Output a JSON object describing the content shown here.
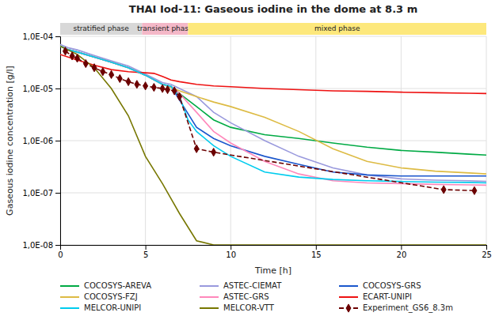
{
  "chart_data": {
    "type": "line",
    "title": "THAI Iod-11: Gaseous iodine in the dome at 8.3 m",
    "xlabel": "Time [h]",
    "ylabel": "Gaseous iodine concentration [g/l]",
    "log": "y",
    "grid": true,
    "legend": "bottom",
    "xlim": [
      0,
      25
    ],
    "xticks": [
      0,
      5,
      10,
      15,
      20,
      25
    ],
    "ylim": [
      1e-08,
      0.0001
    ],
    "yticks": [
      {
        "value": 1e-08,
        "label": "1,0E-08"
      },
      {
        "value": 1e-07,
        "label": "1,0E-07"
      },
      {
        "value": 1e-06,
        "label": "1,0E-06"
      },
      {
        "value": 1e-05,
        "label": "1,0E-05"
      },
      {
        "value": 0.0001,
        "label": "1,0E-04"
      }
    ],
    "phases": [
      {
        "label": "stratified phase",
        "xstart": 0,
        "xend": 4.8,
        "color": "#d8d8d8"
      },
      {
        "label": "transient phase",
        "xstart": 4.8,
        "xend": 7.5,
        "color": "#f4b8c8"
      },
      {
        "label": "mixed phase",
        "xstart": 7.5,
        "xend": 25,
        "color": "#fde87c"
      }
    ],
    "series": [
      {
        "name": "COCOSYS-AREVA",
        "color": "#00aa44",
        "x": [
          0,
          0.5,
          1,
          2,
          3,
          4,
          5,
          6,
          6.5,
          7,
          8,
          9,
          10,
          12,
          14,
          16,
          18,
          20,
          22,
          24,
          25
        ],
        "values": [
          6.5e-05,
          5.5e-05,
          5e-05,
          4e-05,
          3.2e-05,
          2.5e-05,
          1.8e-05,
          1.2e-05,
          1.1e-05,
          8e-06,
          4.5e-06,
          2.5e-06,
          1.8e-06,
          1.3e-06,
          1.1e-06,
          9e-07,
          7.5e-07,
          6.5e-07,
          6e-07,
          5.5e-07,
          5.3e-07
        ]
      },
      {
        "name": "ASTEC-CIEMAT",
        "color": "#9999dd",
        "x": [
          0,
          0.5,
          1,
          2,
          3,
          4,
          5,
          6,
          6.5,
          7,
          8,
          9,
          10,
          12,
          14,
          16,
          18,
          20,
          22,
          24,
          25
        ],
        "values": [
          7e-05,
          6e-05,
          5.5e-05,
          4.3e-05,
          3.4e-05,
          2.7e-05,
          1.9e-05,
          1.3e-05,
          1.2e-05,
          1e-05,
          7e-06,
          3.5e-06,
          2.2e-06,
          1e-06,
          5e-07,
          3e-07,
          2.2e-07,
          1.85e-07,
          1.75e-07,
          1.7e-07,
          1.65e-07
        ]
      },
      {
        "name": "COCOSYS-GRS",
        "color": "#1a56cc",
        "x": [
          0,
          0.5,
          1,
          2,
          3,
          4,
          5,
          6,
          6.5,
          7,
          8,
          9,
          10,
          12,
          14,
          16,
          18,
          20,
          22,
          24,
          25
        ],
        "values": [
          6.5e-05,
          5.5e-05,
          5e-05,
          4e-05,
          3.2e-05,
          2.5e-05,
          1.8e-05,
          1.2e-05,
          1.1e-05,
          6e-06,
          1.8e-06,
          1.1e-06,
          8e-07,
          5e-07,
          3.5e-07,
          2.5e-07,
          2.2e-07,
          2.1e-07,
          2.1e-07,
          2.1e-07,
          2.1e-07
        ]
      },
      {
        "name": "COCOSYS-FZJ",
        "color": "#ddbb44",
        "x": [
          0,
          0.5,
          1,
          2,
          3,
          4,
          5,
          6,
          7,
          8,
          9,
          10,
          12,
          14,
          16,
          18,
          20,
          22,
          24,
          25
        ],
        "values": [
          6.5e-05,
          5.5e-05,
          5e-05,
          4e-05,
          3.2e-05,
          2.5e-05,
          1.8e-05,
          1.2e-05,
          9e-06,
          7e-06,
          5.5e-06,
          4.5e-06,
          2.8e-06,
          1.5e-06,
          7e-07,
          4e-07,
          3e-07,
          2.6e-07,
          2.4e-07,
          2.3e-07
        ]
      },
      {
        "name": "ASTEC-GRS",
        "color": "#ff88bb",
        "x": [
          0,
          0.5,
          1,
          2,
          3,
          4,
          5,
          6,
          6.5,
          7,
          8,
          9,
          10,
          12,
          14,
          16,
          18,
          20,
          22,
          24,
          25
        ],
        "values": [
          6.5e-05,
          5.5e-05,
          5e-05,
          4e-05,
          3.2e-05,
          2.5e-05,
          1.8e-05,
          1.2e-05,
          1.1e-05,
          8e-06,
          3.5e-06,
          1.5e-06,
          9e-07,
          4e-07,
          2.3e-07,
          1.7e-07,
          1.55e-07,
          1.5e-07,
          1.45e-07,
          1.42e-07,
          1.4e-07
        ]
      },
      {
        "name": "ECART-UNIPI",
        "color": "#ee1111",
        "x": [
          0,
          1,
          2,
          3,
          4,
          4.5,
          5,
          5.5,
          6,
          6.2,
          6.5,
          7,
          8,
          9,
          10,
          12,
          14,
          16,
          18,
          20,
          22,
          24,
          25
        ],
        "values": [
          4.5e-05,
          3.5e-05,
          2.8e-05,
          2.3e-05,
          2.1e-05,
          2.05e-05,
          2e-05,
          1.95e-05,
          1.7e-05,
          1.6e-05,
          1.45e-05,
          1.35e-05,
          1.2e-05,
          1.12e-05,
          1.08e-05,
          1e-05,
          9.5e-06,
          9e-06,
          8.8e-06,
          8.5e-06,
          8.3e-06,
          8.1e-06,
          8e-06
        ]
      },
      {
        "name": "MELCOR-UNIPI",
        "color": "#00ccee",
        "x": [
          0,
          0.5,
          1,
          2,
          3,
          4,
          5,
          6,
          6.5,
          7,
          7.5,
          8,
          9,
          10,
          12,
          14,
          16,
          18,
          20,
          22,
          24,
          25
        ],
        "values": [
          6.5e-05,
          5.5e-05,
          5e-05,
          4e-05,
          3.2e-05,
          2.5e-05,
          1.8e-05,
          1.2e-05,
          1.1e-05,
          7e-06,
          2.5e-06,
          1.5e-06,
          8e-07,
          5e-07,
          2.5e-07,
          2e-07,
          1.8e-07,
          1.7e-07,
          1.65e-07,
          1.6e-07,
          1.58e-07,
          1.55e-07
        ]
      },
      {
        "name": "MELCOR-VTT",
        "color": "#777700",
        "x": [
          0,
          1,
          2,
          3,
          4,
          5,
          6,
          7,
          8,
          9,
          9.5,
          25
        ],
        "values": [
          6.5e-05,
          4.5e-05,
          2.5e-05,
          1e-05,
          3e-06,
          5e-07,
          1.5e-07,
          4e-08,
          1.2e-08,
          1e-08,
          1e-08,
          1e-08
        ]
      },
      {
        "name": "Experiment_GS6_8.3m",
        "color": "#6b0000",
        "marker": "diamond",
        "line_style": "dashed",
        "x": [
          0.3,
          0.7,
          1.0,
          1.5,
          2.0,
          2.5,
          3.0,
          3.5,
          4.0,
          4.5,
          5.0,
          5.5,
          6.0,
          6.3,
          6.7,
          7.0,
          8.0,
          9.0,
          22.5,
          24.3
        ],
        "values": [
          5.2e-05,
          4.2e-05,
          3.8e-05,
          3e-05,
          2.5e-05,
          2.1e-05,
          1.85e-05,
          1.55e-05,
          1.35e-05,
          1.2e-05,
          1.12e-05,
          1.05e-05,
          1e-05,
          9.5e-06,
          9e-06,
          7e-06,
          7e-07,
          6e-07,
          1.15e-07,
          1.1e-07
        ]
      }
    ]
  }
}
